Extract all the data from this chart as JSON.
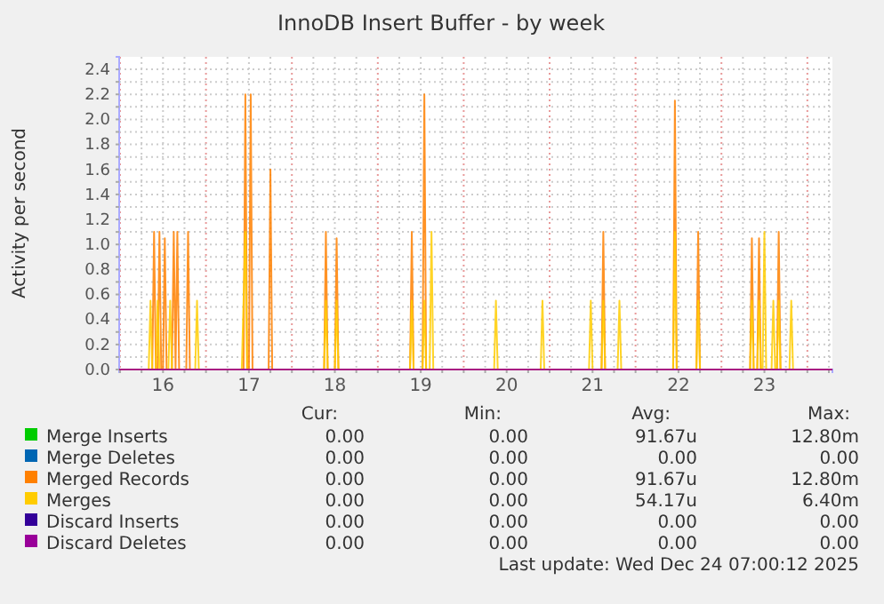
{
  "chart_data": {
    "type": "line",
    "title": "InnoDB Insert Buffer - by week",
    "ylabel": "Activity per second",
    "xlim": [
      "2025-12-15T23:45",
      "2025-12-24T07:00"
    ],
    "xticks": [
      {
        "value": "2025-12-16T00:00",
        "label": null
      },
      {
        "value": "2025-12-16T06:00",
        "label": null
      },
      {
        "value": "2025-12-16T12:00",
        "label": "16"
      },
      {
        "value": "2025-12-16T18:00",
        "label": null
      },
      {
        "value": "2025-12-17T00:00",
        "label": null
      },
      {
        "value": "2025-12-17T06:00",
        "label": null
      },
      {
        "value": "2025-12-17T12:00",
        "label": "17"
      },
      {
        "value": "2025-12-17T18:00",
        "label": null
      },
      {
        "value": "2025-12-18T00:00",
        "label": null
      },
      {
        "value": "2025-12-18T06:00",
        "label": null
      },
      {
        "value": "2025-12-18T12:00",
        "label": "18"
      },
      {
        "value": "2025-12-18T18:00",
        "label": null
      },
      {
        "value": "2025-12-19T00:00",
        "label": null
      },
      {
        "value": "2025-12-19T06:00",
        "label": null
      },
      {
        "value": "2025-12-19T12:00",
        "label": "19"
      },
      {
        "value": "2025-12-19T18:00",
        "label": null
      },
      {
        "value": "2025-12-20T00:00",
        "label": null
      },
      {
        "value": "2025-12-20T06:00",
        "label": null
      },
      {
        "value": "2025-12-20T12:00",
        "label": "20"
      },
      {
        "value": "2025-12-20T18:00",
        "label": null
      },
      {
        "value": "2025-12-21T00:00",
        "label": null
      },
      {
        "value": "2025-12-21T06:00",
        "label": null
      },
      {
        "value": "2025-12-21T12:00",
        "label": "21"
      },
      {
        "value": "2025-12-21T18:00",
        "label": null
      },
      {
        "value": "2025-12-22T00:00",
        "label": null
      },
      {
        "value": "2025-12-22T06:00",
        "label": null
      },
      {
        "value": "2025-12-22T12:00",
        "label": "22"
      },
      {
        "value": "2025-12-22T18:00",
        "label": null
      },
      {
        "value": "2025-12-23T00:00",
        "label": null
      },
      {
        "value": "2025-12-23T06:00",
        "label": null
      },
      {
        "value": "2025-12-23T12:00",
        "label": "23"
      },
      {
        "value": "2025-12-23T18:00",
        "label": null
      },
      {
        "value": "2025-12-24T00:00",
        "label": null
      },
      {
        "value": "2025-12-24T06:00",
        "label": null
      }
    ],
    "ylim": [
      0,
      2.5
    ],
    "yticks": [
      {
        "value": 0,
        "label": "0.0"
      },
      {
        "value": 0.1,
        "label": null
      },
      {
        "value": 0.2,
        "label": "0.2"
      },
      {
        "value": 0.3,
        "label": null
      },
      {
        "value": 0.4,
        "label": "0.4"
      },
      {
        "value": 0.5,
        "label": null
      },
      {
        "value": 0.6,
        "label": "0.6"
      },
      {
        "value": 0.7,
        "label": null
      },
      {
        "value": 0.8,
        "label": "0.8"
      },
      {
        "value": 0.9,
        "label": null
      },
      {
        "value": 1,
        "label": "1.0"
      },
      {
        "value": 1.1,
        "label": null
      },
      {
        "value": 1.2,
        "label": "1.2"
      },
      {
        "value": 1.3,
        "label": null
      },
      {
        "value": 1.4,
        "label": "1.4"
      },
      {
        "value": 1.5,
        "label": null
      },
      {
        "value": 1.6,
        "label": "1.6"
      },
      {
        "value": 1.7,
        "label": null
      },
      {
        "value": 1.8,
        "label": "1.8"
      },
      {
        "value": 1.9,
        "label": null
      },
      {
        "value": 2,
        "label": "2.0"
      },
      {
        "value": 2.1,
        "label": null
      },
      {
        "value": 2.2,
        "label": "2.2"
      },
      {
        "value": 2.3,
        "label": null
      },
      {
        "value": 2.4,
        "label": "2.4"
      }
    ],
    "grid": true,
    "legend": "bottom",
    "series": [
      {
        "name": "Merge Inserts",
        "color": "#00cc00"
      },
      {
        "name": "Merge Deletes",
        "color": "#0066b3"
      },
      {
        "name": "Merged Records",
        "color": "#ff8000",
        "x": [
          "2025-12-15T23:45",
          "2025-12-16T09:00",
          "2025-12-16T09:30",
          "2025-12-16T10:00",
          "2025-12-16T10:30",
          "2025-12-16T11:00",
          "2025-12-16T11:30",
          "2025-12-16T12:00",
          "2025-12-16T12:30",
          "2025-12-16T13:00",
          "2025-12-16T14:30",
          "2025-12-16T15:00",
          "2025-12-16T15:30",
          "2025-12-16T16:00",
          "2025-12-16T16:30",
          "2025-12-16T18:30",
          "2025-12-16T19:00",
          "2025-12-16T19:30",
          "2025-12-17T10:30",
          "2025-12-17T11:00",
          "2025-12-17T11:30",
          "2025-12-17T12:00",
          "2025-12-17T12:30",
          "2025-12-17T13:00",
          "2025-12-17T17:30",
          "2025-12-17T18:00",
          "2025-12-17T18:30",
          "2025-12-18T09:00",
          "2025-12-18T09:30",
          "2025-12-18T10:00",
          "2025-12-18T12:00",
          "2025-12-18T12:30",
          "2025-12-18T13:00",
          "2025-12-19T09:00",
          "2025-12-19T09:30",
          "2025-12-19T10:00",
          "2025-12-19T12:30",
          "2025-12-19T13:00",
          "2025-12-19T13:30",
          "2025-12-21T14:30",
          "2025-12-21T15:00",
          "2025-12-21T15:30",
          "2025-12-22T10:30",
          "2025-12-22T11:00",
          "2025-12-22T11:30",
          "2025-12-22T17:00",
          "2025-12-22T17:30",
          "2025-12-22T18:00",
          "2025-12-23T08:00",
          "2025-12-23T08:30",
          "2025-12-23T09:00",
          "2025-12-23T10:00",
          "2025-12-23T10:30",
          "2025-12-23T11:00",
          "2025-12-23T15:30",
          "2025-12-23T16:00",
          "2025-12-23T16:30",
          "2025-12-24T07:00"
        ],
        "values": [
          0,
          0,
          1.1,
          0,
          0,
          1.1,
          0,
          0,
          1.05,
          0,
          0,
          1.1,
          0,
          1.1,
          0,
          0,
          1.1,
          0,
          0,
          2.2,
          0,
          0,
          2.2,
          0,
          0,
          1.6,
          0,
          0,
          1.1,
          0,
          0,
          1.05,
          0,
          0,
          1.1,
          0,
          0,
          2.2,
          0,
          0,
          1.1,
          0,
          0,
          2.15,
          0,
          0,
          1.1,
          0,
          0,
          1.05,
          0,
          0,
          1.05,
          0,
          0,
          1.1,
          0,
          0
        ]
      },
      {
        "name": "Merges",
        "color": "#ffcc00",
        "x": [
          "2025-12-15T23:45",
          "2025-12-16T08:00",
          "2025-12-16T08:30",
          "2025-12-16T09:00",
          "2025-12-16T10:00",
          "2025-12-16T10:30",
          "2025-12-16T11:00",
          "2025-12-16T13:30",
          "2025-12-16T14:00",
          "2025-12-16T14:30",
          "2025-12-16T21:00",
          "2025-12-16T21:30",
          "2025-12-16T22:00",
          "2025-12-17T10:00",
          "2025-12-17T10:30",
          "2025-12-17T11:00",
          "2025-12-17T11:30",
          "2025-12-18T09:00",
          "2025-12-18T09:30",
          "2025-12-18T10:00",
          "2025-12-18T12:00",
          "2025-12-18T12:30",
          "2025-12-18T13:00",
          "2025-12-19T09:00",
          "2025-12-19T09:30",
          "2025-12-19T10:00",
          "2025-12-19T12:30",
          "2025-12-19T13:00",
          "2025-12-19T13:30",
          "2025-12-19T14:30",
          "2025-12-19T15:00",
          "2025-12-19T15:30",
          "2025-12-20T08:30",
          "2025-12-20T09:00",
          "2025-12-20T09:30",
          "2025-12-20T21:30",
          "2025-12-20T22:00",
          "2025-12-20T22:30",
          "2025-12-21T11:00",
          "2025-12-21T11:30",
          "2025-12-21T12:00",
          "2025-12-21T14:30",
          "2025-12-21T15:00",
          "2025-12-21T15:30",
          "2025-12-21T19:00",
          "2025-12-21T19:30",
          "2025-12-21T20:00",
          "2025-12-22T10:30",
          "2025-12-22T11:00",
          "2025-12-22T11:30",
          "2025-12-22T17:00",
          "2025-12-22T17:30",
          "2025-12-22T18:00",
          "2025-12-23T08:00",
          "2025-12-23T08:30",
          "2025-12-23T09:00",
          "2025-12-23T10:00",
          "2025-12-23T10:30",
          "2025-12-23T11:00",
          "2025-12-23T11:30",
          "2025-12-23T12:00",
          "2025-12-23T12:30",
          "2025-12-23T14:00",
          "2025-12-23T14:30",
          "2025-12-23T15:00",
          "2025-12-23T15:30",
          "2025-12-23T16:00",
          "2025-12-23T16:30",
          "2025-12-23T19:00",
          "2025-12-23T19:30",
          "2025-12-23T20:00",
          "2025-12-24T07:00"
        ],
        "values": [
          0,
          0,
          0.55,
          0,
          0,
          0.55,
          0,
          0,
          0.55,
          0,
          0,
          0.55,
          0,
          0,
          0.55,
          1.1,
          0,
          0,
          0.55,
          0,
          0,
          0.55,
          0,
          0,
          0.55,
          0,
          0,
          0.55,
          0,
          0,
          1.1,
          0,
          0,
          0.55,
          0,
          0,
          0.55,
          0,
          0,
          0.55,
          0,
          0,
          0.55,
          0,
          0,
          0.55,
          0,
          0,
          1.1,
          0,
          0,
          0.55,
          0,
          0,
          0.55,
          0,
          0,
          0.55,
          0,
          0,
          1.1,
          0,
          0,
          0.55,
          0,
          0,
          0.55,
          0,
          0,
          0.55,
          0,
          0
        ]
      },
      {
        "name": "Discard Inserts",
        "color": "#330099"
      },
      {
        "name": "Discard Deletes",
        "color": "#990099",
        "x": [
          "2025-12-15T23:45",
          "2025-12-24T07:00"
        ],
        "values": [
          0,
          0
        ]
      }
    ],
    "annotations": [
      "Cur:",
      "Min:",
      "Avg:",
      "Max:",
      "0.00",
      "0.00",
      "91.67u",
      "12.80m",
      "0.00",
      "0.00",
      "0.00",
      "0.00",
      "0.00",
      "0.00",
      "91.67u",
      "12.80m",
      "0.00",
      "0.00",
      "54.17u",
      "6.40m",
      "0.00",
      "0.00",
      "0.00",
      "0.00",
      "0.00",
      "0.00",
      "0.00",
      "0.00",
      "Last update: Wed Dec 24 07:00:12 2025"
    ]
  }
}
